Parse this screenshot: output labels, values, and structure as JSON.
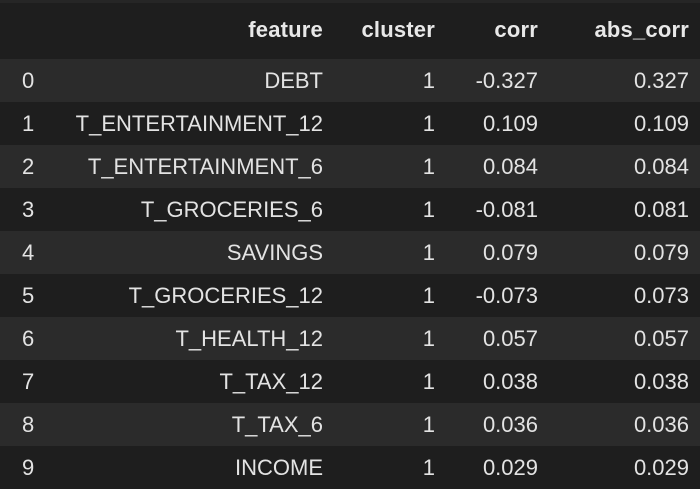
{
  "table": {
    "columns": [
      "",
      "feature",
      "cluster",
      "corr",
      "abs_corr"
    ],
    "rows": [
      {
        "index": "0",
        "feature": "DEBT",
        "cluster": "1",
        "corr": "-0.327",
        "abs_corr": "0.327"
      },
      {
        "index": "1",
        "feature": "T_ENTERTAINMENT_12",
        "cluster": "1",
        "corr": "0.109",
        "abs_corr": "0.109"
      },
      {
        "index": "2",
        "feature": "T_ENTERTAINMENT_6",
        "cluster": "1",
        "corr": "0.084",
        "abs_corr": "0.084"
      },
      {
        "index": "3",
        "feature": "T_GROCERIES_6",
        "cluster": "1",
        "corr": "-0.081",
        "abs_corr": "0.081"
      },
      {
        "index": "4",
        "feature": "SAVINGS",
        "cluster": "1",
        "corr": "0.079",
        "abs_corr": "0.079"
      },
      {
        "index": "5",
        "feature": "T_GROCERIES_12",
        "cluster": "1",
        "corr": "-0.073",
        "abs_corr": "0.073"
      },
      {
        "index": "6",
        "feature": "T_HEALTH_12",
        "cluster": "1",
        "corr": "0.057",
        "abs_corr": "0.057"
      },
      {
        "index": "7",
        "feature": "T_TAX_12",
        "cluster": "1",
        "corr": "0.038",
        "abs_corr": "0.038"
      },
      {
        "index": "8",
        "feature": "T_TAX_6",
        "cluster": "1",
        "corr": "0.036",
        "abs_corr": "0.036"
      },
      {
        "index": "9",
        "feature": "INCOME",
        "cluster": "1",
        "corr": "0.029",
        "abs_corr": "0.029"
      }
    ]
  },
  "colors": {
    "background": "#1e1e1e",
    "row_stripe": "#2b2b2b",
    "text": "#e3e3e3"
  }
}
